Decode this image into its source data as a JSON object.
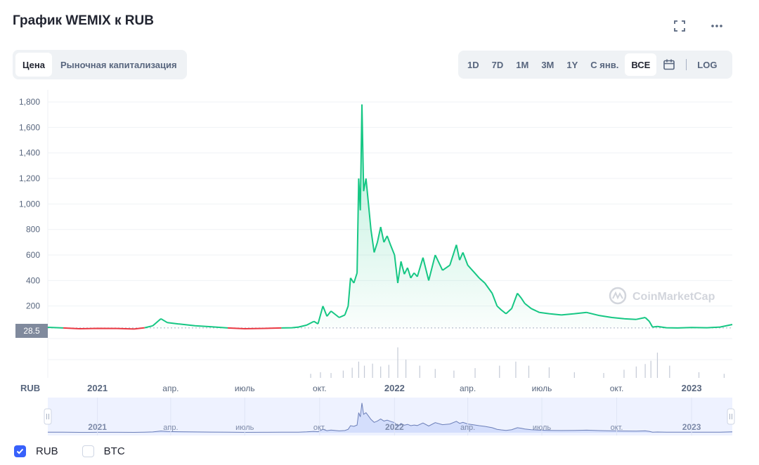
{
  "header": {
    "title": "График WEMIX к RUB"
  },
  "tabs": [
    {
      "label": "Цена",
      "active": true
    },
    {
      "label": "Рыночная капитализация",
      "active": false
    }
  ],
  "ranges": [
    {
      "label": "1D",
      "active": false
    },
    {
      "label": "7D",
      "active": false
    },
    {
      "label": "1M",
      "active": false
    },
    {
      "label": "3M",
      "active": false
    },
    {
      "label": "1Y",
      "active": false
    },
    {
      "label": "С янв.",
      "active": false
    },
    {
      "label": "ВСЕ",
      "active": true
    }
  ],
  "log_label": "LOG",
  "watermark": "CoinMarketCap",
  "legend": [
    {
      "label": "RUB",
      "checked": true
    },
    {
      "label": "BTC",
      "checked": false
    }
  ],
  "colors": {
    "up": "#16c784",
    "down": "#ea3943",
    "accent": "#3861fb",
    "grid": "#eff2f5",
    "muted": "#58667e"
  },
  "chart_data": {
    "type": "area",
    "ylabel": "RUB",
    "ylim": [
      0,
      1850
    ],
    "xlim": [
      "2020-11-01",
      "2023-02-20"
    ],
    "yticks": [
      200,
      400,
      600,
      800,
      1000,
      1200,
      1400,
      1600,
      1800
    ],
    "ytick_labels": [
      "200",
      "400",
      "600",
      "800",
      "1,000",
      "1,200",
      "1,400",
      "1,600",
      "1,800"
    ],
    "xticks": [
      {
        "date": "2021-01-01",
        "label": "2021",
        "bold": true
      },
      {
        "date": "2021-04-01",
        "label": "апр.",
        "bold": false
      },
      {
        "date": "2021-07-01",
        "label": "июль",
        "bold": false
      },
      {
        "date": "2021-10-01",
        "label": "окт.",
        "bold": false
      },
      {
        "date": "2022-01-01",
        "label": "2022",
        "bold": true
      },
      {
        "date": "2022-04-01",
        "label": "апр.",
        "bold": false
      },
      {
        "date": "2022-07-01",
        "label": "июль",
        "bold": false
      },
      {
        "date": "2022-10-01",
        "label": "окт.",
        "bold": false
      },
      {
        "date": "2023-01-01",
        "label": "2023",
        "bold": true
      }
    ],
    "reference_price": 28.5,
    "reference_label": "28.5",
    "series": [
      {
        "x": [
          "2020-11-01",
          "2020-11-20",
          "2020-12-10",
          "2021-01-01",
          "2021-01-25",
          "2021-02-15",
          "2021-02-28",
          "2021-03-10",
          "2021-03-20",
          "2021-03-28",
          "2021-04-10",
          "2021-05-01",
          "2021-05-20",
          "2021-06-10",
          "2021-07-01",
          "2021-07-25",
          "2021-08-15",
          "2021-08-28",
          "2021-09-05",
          "2021-09-15",
          "2021-09-24",
          "2021-09-29",
          "2021-10-05",
          "2021-10-10",
          "2021-10-15",
          "2021-10-25",
          "2021-11-01",
          "2021-11-05",
          "2021-11-08",
          "2021-11-12",
          "2021-11-16",
          "2021-11-18",
          "2021-11-20",
          "2021-11-22",
          "2021-11-24",
          "2021-11-27",
          "2021-11-30",
          "2021-12-03",
          "2021-12-07",
          "2021-12-11",
          "2021-12-15",
          "2021-12-19",
          "2021-12-23",
          "2021-12-27",
          "2022-01-01",
          "2022-01-05",
          "2022-01-09",
          "2022-01-13",
          "2022-01-17",
          "2022-01-21",
          "2022-01-25",
          "2022-01-29",
          "2022-02-05",
          "2022-02-12",
          "2022-02-20",
          "2022-03-01",
          "2022-03-10",
          "2022-03-18",
          "2022-03-22",
          "2022-03-26",
          "2022-04-01",
          "2022-04-08",
          "2022-04-15",
          "2022-04-22",
          "2022-05-01",
          "2022-05-07",
          "2022-05-12",
          "2022-05-18",
          "2022-05-25",
          "2022-06-01",
          "2022-06-06",
          "2022-06-10",
          "2022-06-18",
          "2022-06-28",
          "2022-07-10",
          "2022-07-25",
          "2022-08-10",
          "2022-08-25",
          "2022-09-10",
          "2022-09-25",
          "2022-10-10",
          "2022-10-25",
          "2022-11-05",
          "2022-11-10",
          "2022-11-14",
          "2022-11-20",
          "2022-12-01",
          "2022-12-15",
          "2023-01-01",
          "2023-01-20",
          "2023-02-05",
          "2023-02-20"
        ],
        "values": [
          33,
          28,
          22,
          25,
          24,
          20,
          30,
          45,
          100,
          70,
          60,
          45,
          38,
          28,
          22,
          25,
          28,
          30,
          35,
          50,
          80,
          60,
          200,
          120,
          160,
          110,
          130,
          200,
          420,
          380,
          460,
          1200,
          950,
          1780,
          1100,
          1200,
          1000,
          800,
          620,
          700,
          820,
          700,
          750,
          680,
          600,
          380,
          550,
          450,
          500,
          420,
          460,
          430,
          580,
          400,
          600,
          480,
          520,
          680,
          560,
          620,
          520,
          470,
          420,
          380,
          300,
          200,
          170,
          140,
          180,
          300,
          260,
          220,
          180,
          150,
          140,
          130,
          140,
          150,
          125,
          110,
          100,
          95,
          110,
          80,
          35,
          40,
          30,
          28,
          32,
          30,
          35,
          55
        ]
      }
    ],
    "volume": {
      "x": [
        "2021-09-20",
        "2021-10-02",
        "2021-10-15",
        "2021-10-30",
        "2021-11-10",
        "2021-11-18",
        "2021-11-25",
        "2021-12-05",
        "2021-12-15",
        "2021-12-25",
        "2022-01-05",
        "2022-01-15",
        "2022-02-01",
        "2022-02-20",
        "2022-03-15",
        "2022-04-10",
        "2022-05-10",
        "2022-05-30",
        "2022-06-15",
        "2022-07-10",
        "2022-08-10",
        "2022-09-15",
        "2022-10-10",
        "2022-10-25",
        "2022-11-05",
        "2022-11-12",
        "2022-11-20",
        "2022-12-05",
        "2023-01-10",
        "2023-02-10"
      ],
      "values": [
        0.1,
        0.14,
        0.12,
        0.18,
        0.25,
        0.4,
        0.3,
        0.35,
        0.28,
        0.32,
        0.75,
        0.45,
        0.3,
        0.22,
        0.18,
        0.24,
        0.3,
        0.4,
        0.3,
        0.26,
        0.14,
        0.12,
        0.2,
        0.28,
        0.34,
        0.42,
        0.62,
        0.3,
        0.14,
        0.1
      ]
    }
  }
}
